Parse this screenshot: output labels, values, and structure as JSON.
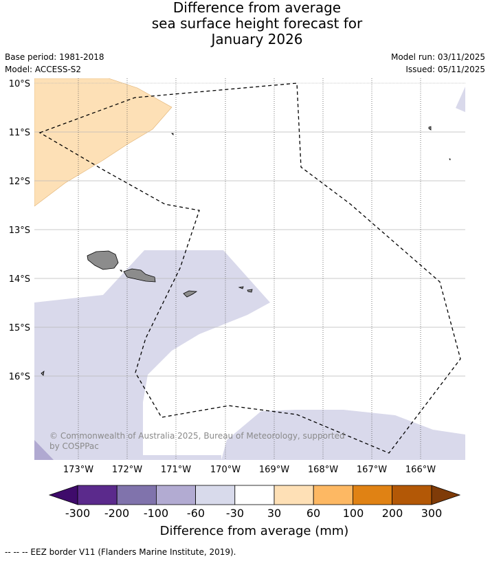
{
  "title": {
    "line1": "Difference from average",
    "line2": "sea surface height forecast for",
    "line3": "January 2026"
  },
  "meta": {
    "base_period": "Base period: 1981-2018",
    "model": "Model: ACCESS-S2",
    "model_run": "Model run: 03/11/2025",
    "issued": "Issued: 05/11/2025"
  },
  "map": {
    "lat_labels": [
      "10°S",
      "11°S",
      "12°S",
      "13°S",
      "14°S",
      "15°S",
      "16°S"
    ],
    "lon_labels": [
      "173°W",
      "172°W",
      "171°W",
      "170°W",
      "169°W",
      "168°W",
      "167°W",
      "166°W"
    ],
    "copyright_line1": "© Commonwealth of Australia 2025, Bureau of Meteorology, supported",
    "copyright_line2": "by COSPPac",
    "colors": {
      "positive_30_60": "#fde0b6",
      "negative_60_30": "#d9d9eb",
      "negative_100_60": "#b0a9d1",
      "land": "#8c8c8c",
      "gridline": "#b0b0b0"
    }
  },
  "colorbar": {
    "label": "Difference from average (mm)",
    "ticks": [
      "-300",
      "-200",
      "-100",
      "-60",
      "-30",
      "30",
      "60",
      "100",
      "200",
      "300"
    ],
    "colors": [
      "#3f0b6b",
      "#5b2a8c",
      "#8073ac",
      "#b2abd2",
      "#d8daeb",
      "#ffffff",
      "#fee0b6",
      "#fdb863",
      "#e08214",
      "#b35806",
      "#7f3b08"
    ]
  },
  "footnote": "--  --  -- EEZ border V11 (Flanders Marine Institute, 2019)."
}
